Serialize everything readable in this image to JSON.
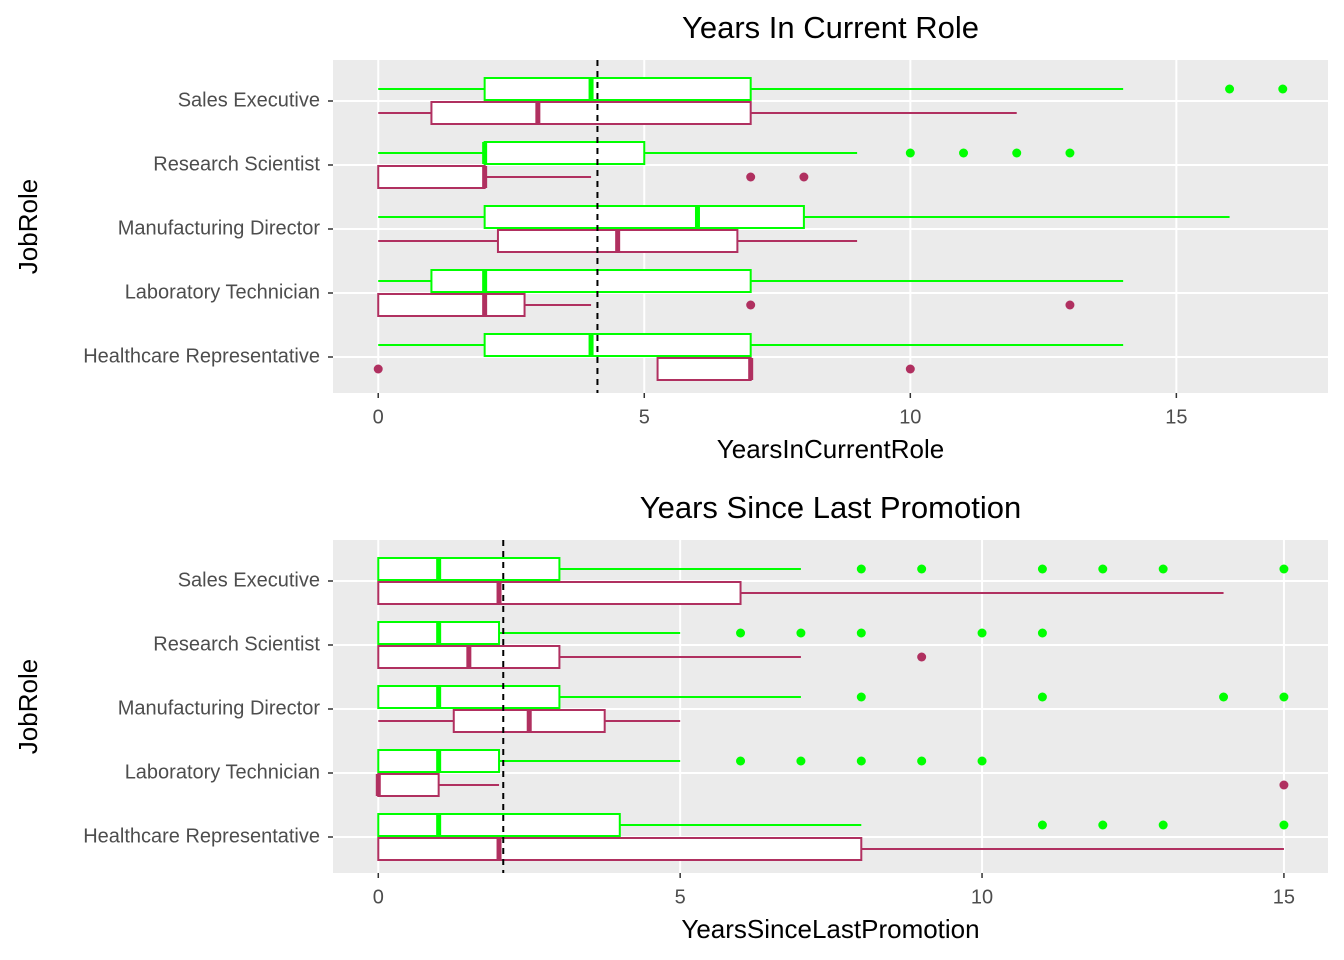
{
  "chart_data": [
    {
      "type": "boxplot",
      "title": "Years In Current Role",
      "xlabel": "YearsInCurrentRole",
      "ylabel": "JobRole",
      "categories": [
        "Healthcare Representative",
        "Laboratory Technician",
        "Manufacturing Director",
        "Research Scientist",
        "Sales Executive"
      ],
      "xlim": [
        -0.85,
        17.85
      ],
      "xticks": [
        0,
        5,
        10,
        15
      ],
      "grid": true,
      "reference_line": 4.12,
      "series": [
        {
          "color": "#00ff00",
          "boxes": [
            {
              "min": 0,
              "q1": 2,
              "median": 4,
              "q3": 7,
              "max": 14,
              "outliers": []
            },
            {
              "min": 0,
              "q1": 1,
              "median": 2,
              "q3": 7,
              "max": 14,
              "outliers": []
            },
            {
              "min": 0,
              "q1": 2,
              "median": 6,
              "q3": 8,
              "max": 16,
              "outliers": []
            },
            {
              "min": 0,
              "q1": 2,
              "median": 2,
              "q3": 5,
              "max": 9,
              "outliers": [
                10,
                11,
                12,
                13
              ]
            },
            {
              "min": 0,
              "q1": 2,
              "median": 4,
              "q3": 7,
              "max": 14,
              "outliers": [
                16,
                17
              ]
            }
          ]
        },
        {
          "color": "#b03060",
          "boxes": [
            {
              "min": 5.25,
              "q1": 5.25,
              "median": 7,
              "q3": 7,
              "max": 7,
              "outliers": [
                0,
                10
              ]
            },
            {
              "min": 0,
              "q1": 0,
              "median": 2,
              "q3": 2.75,
              "max": 4,
              "outliers": [
                7,
                13
              ]
            },
            {
              "min": 0,
              "q1": 2.25,
              "median": 4.5,
              "q3": 6.75,
              "max": 9,
              "outliers": []
            },
            {
              "min": 0,
              "q1": 0,
              "median": 2,
              "q3": 2,
              "max": 4,
              "outliers": [
                7,
                8
              ]
            },
            {
              "min": 0,
              "q1": 1,
              "median": 3,
              "q3": 7,
              "max": 12,
              "outliers": []
            }
          ]
        }
      ]
    },
    {
      "type": "boxplot",
      "title": "Years Since Last Promotion",
      "xlabel": "YearsSinceLastPromotion",
      "ylabel": "JobRole",
      "categories": [
        "Healthcare Representative",
        "Laboratory Technician",
        "Manufacturing Director",
        "Research Scientist",
        "Sales Executive"
      ],
      "xlim": [
        -0.75,
        15.73
      ],
      "xticks": [
        0,
        5,
        10,
        15
      ],
      "grid": true,
      "reference_line": 2.07,
      "series": [
        {
          "color": "#00ff00",
          "boxes": [
            {
              "min": 0,
              "q1": 0,
              "median": 1,
              "q3": 4,
              "max": 8,
              "outliers": [
                11,
                12,
                13,
                15
              ]
            },
            {
              "min": 0,
              "q1": 0,
              "median": 1,
              "q3": 2,
              "max": 5,
              "outliers": [
                6,
                7,
                8,
                9,
                10
              ]
            },
            {
              "min": 0,
              "q1": 0,
              "median": 1,
              "q3": 3,
              "max": 7,
              "outliers": [
                8,
                11,
                14,
                15
              ]
            },
            {
              "min": 0,
              "q1": 0,
              "median": 1,
              "q3": 2,
              "max": 5,
              "outliers": [
                6,
                7,
                8,
                10,
                11
              ]
            },
            {
              "min": 0,
              "q1": 0,
              "median": 1,
              "q3": 3,
              "max": 7,
              "outliers": [
                8,
                9,
                11,
                12,
                13,
                15
              ]
            }
          ]
        },
        {
          "color": "#b03060",
          "boxes": [
            {
              "min": 0,
              "q1": 0,
              "median": 2,
              "q3": 8,
              "max": 15,
              "outliers": []
            },
            {
              "min": 0,
              "q1": 0,
              "median": 0,
              "q3": 1,
              "max": 2,
              "outliers": [
                15
              ]
            },
            {
              "min": 0,
              "q1": 1.25,
              "median": 2.5,
              "q3": 3.75,
              "max": 5,
              "outliers": []
            },
            {
              "min": 0,
              "q1": 0,
              "median": 1.5,
              "q3": 3,
              "max": 7,
              "outliers": [
                9
              ]
            },
            {
              "min": 0,
              "q1": 0,
              "median": 2,
              "q3": 6,
              "max": 14,
              "outliers": []
            }
          ]
        }
      ]
    }
  ]
}
